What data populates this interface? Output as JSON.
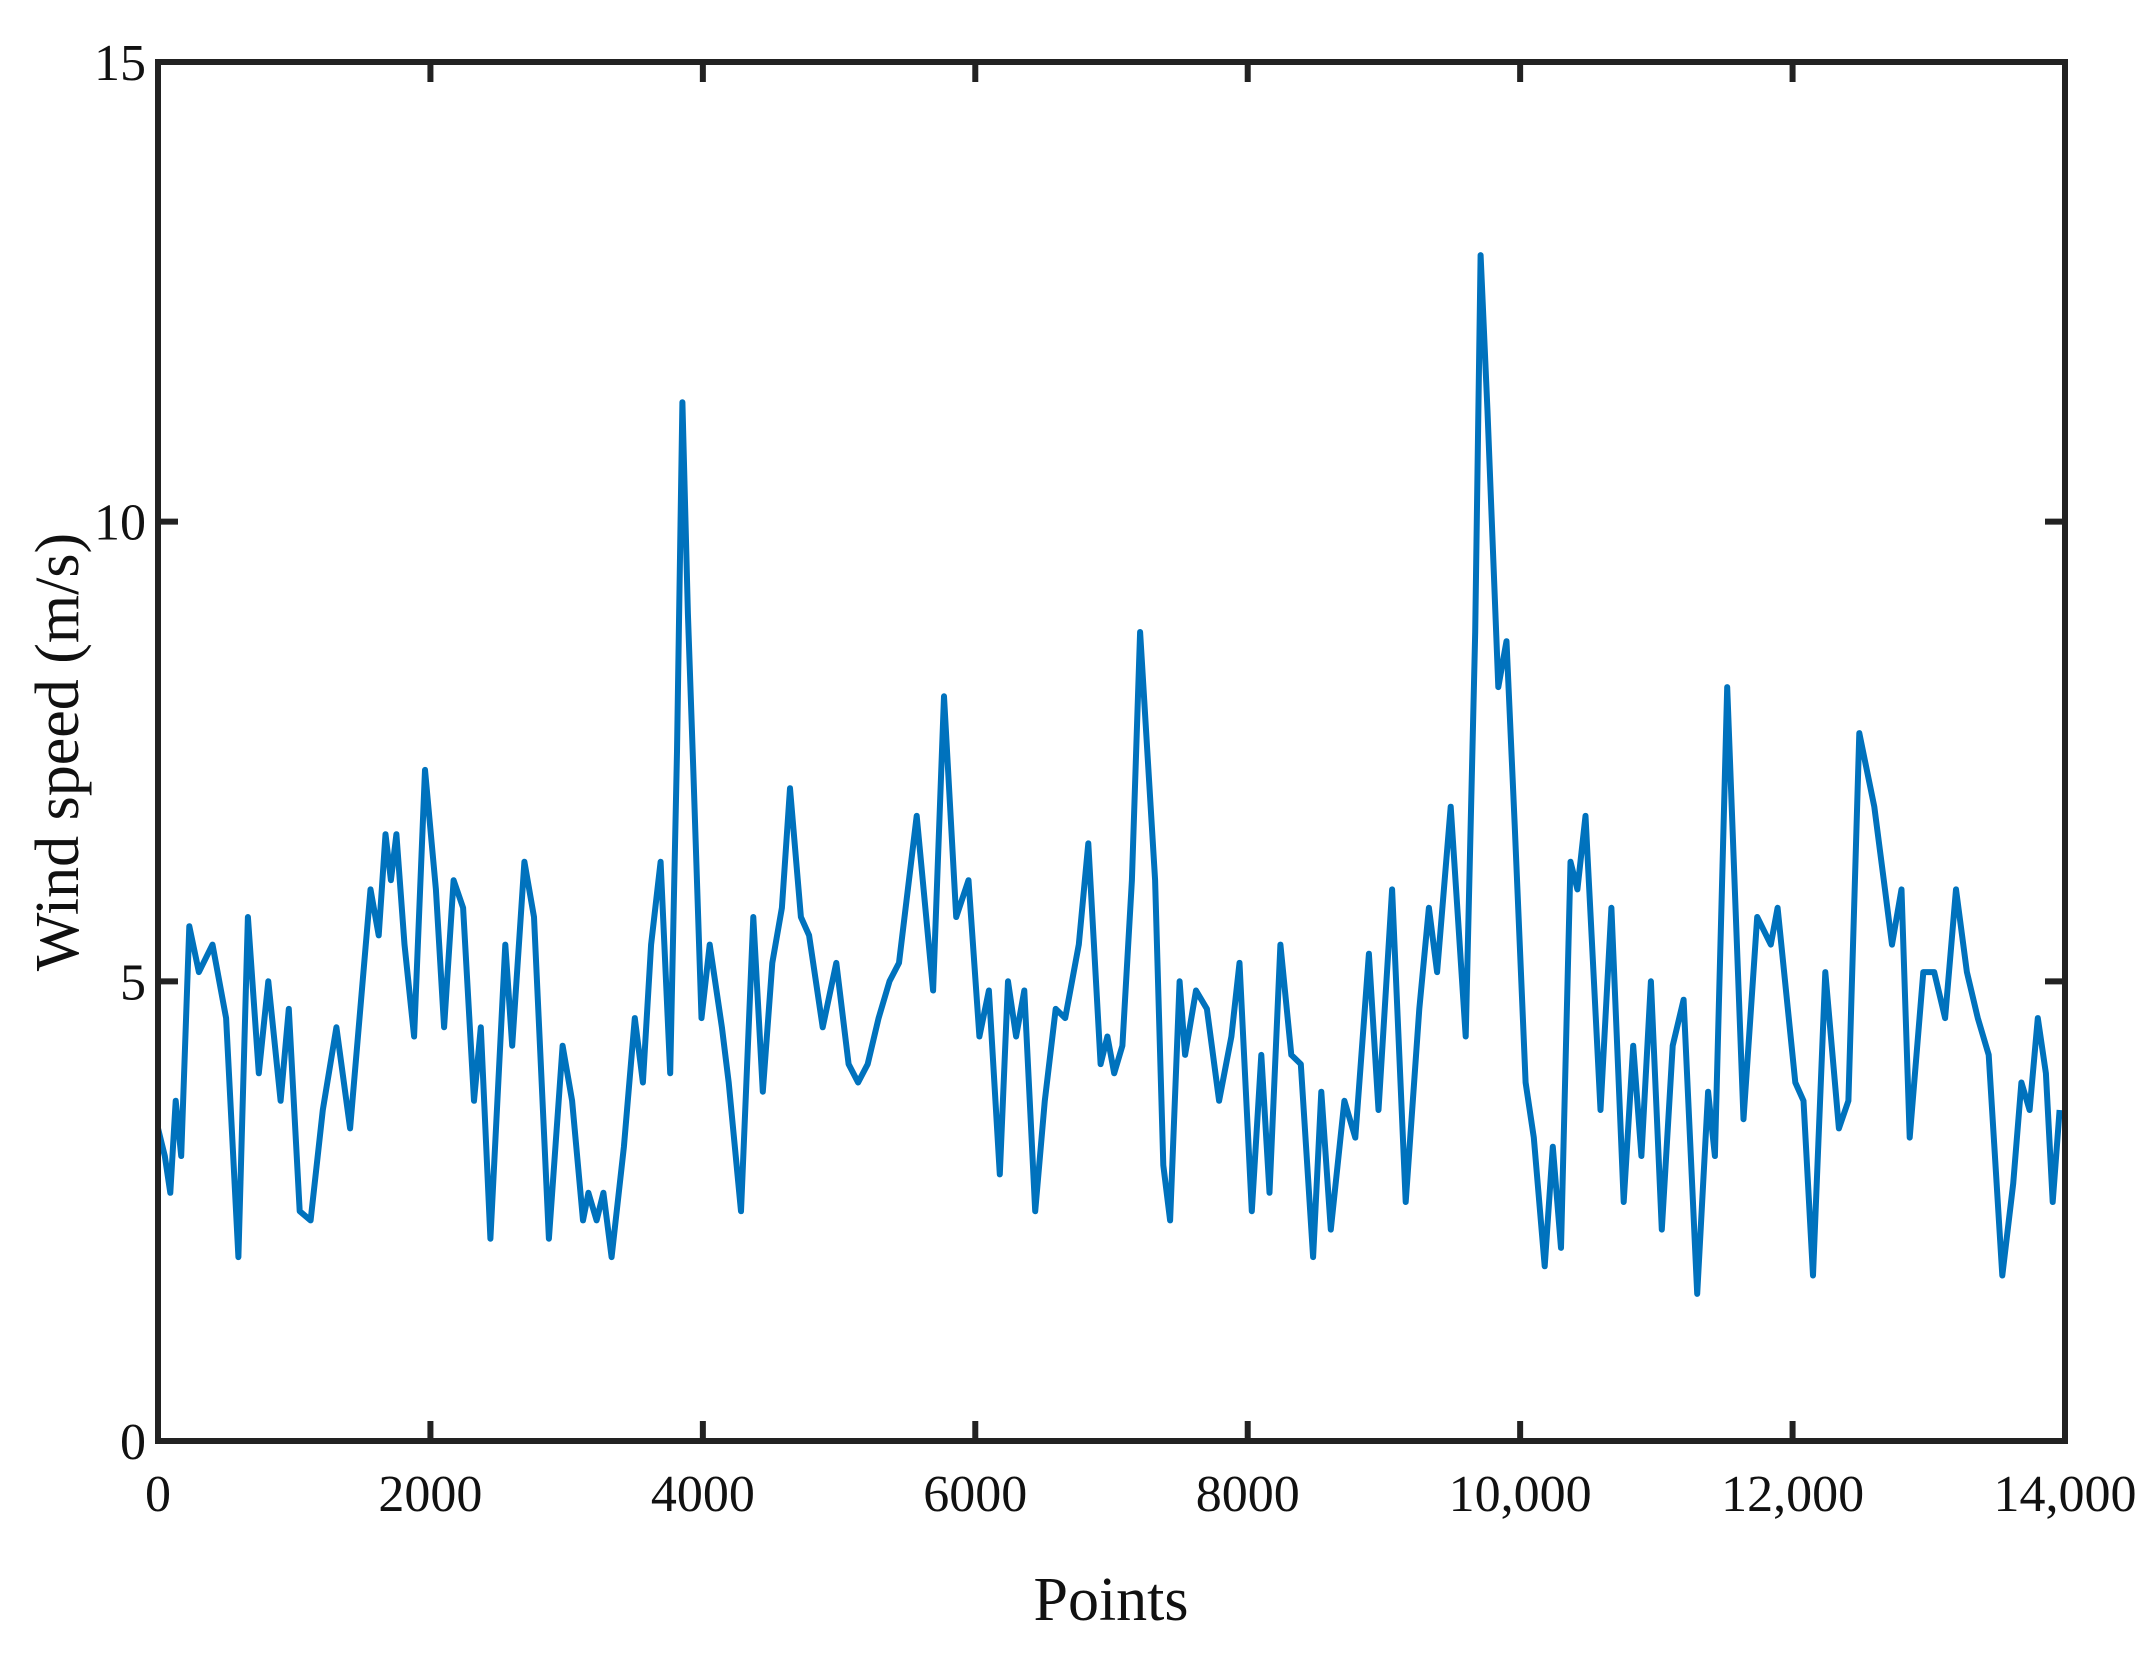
{
  "chart_data": {
    "type": "line",
    "xlabel": "Points",
    "ylabel": "Wind speed (m/s)",
    "x": [
      0,
      50,
      90,
      130,
      170,
      230,
      300,
      400,
      500,
      590,
      660,
      740,
      810,
      900,
      960,
      1040,
      1120,
      1210,
      1310,
      1410,
      1560,
      1620,
      1670,
      1710,
      1750,
      1810,
      1880,
      1960,
      2040,
      2100,
      2170,
      2240,
      2320,
      2370,
      2440,
      2550,
      2600,
      2690,
      2760,
      2870,
      2970,
      3040,
      3120,
      3160,
      3220,
      3270,
      3330,
      3420,
      3500,
      3560,
      3620,
      3690,
      3760,
      3810,
      3850,
      3890,
      3930,
      3990,
      4050,
      4140,
      4190,
      4280,
      4370,
      4440,
      4510,
      4580,
      4640,
      4720,
      4780,
      4880,
      4980,
      5070,
      5140,
      5210,
      5290,
      5370,
      5440,
      5570,
      5690,
      5770,
      5860,
      5950,
      6030,
      6100,
      6180,
      6240,
      6300,
      6360,
      6440,
      6510,
      6590,
      6660,
      6760,
      6830,
      6920,
      6970,
      7020,
      7080,
      7150,
      7210,
      7320,
      7380,
      7430,
      7500,
      7540,
      7620,
      7700,
      7790,
      7880,
      7940,
      8030,
      8100,
      8160,
      8240,
      8320,
      8390,
      8480,
      8540,
      8610,
      8710,
      8790,
      8890,
      8960,
      9060,
      9160,
      9260,
      9330,
      9390,
      9440,
      9490,
      9600,
      9670,
      9710,
      9760,
      9840,
      9900,
      9960,
      10040,
      10100,
      10180,
      10240,
      10300,
      10370,
      10420,
      10480,
      10590,
      10670,
      10760,
      10830,
      10890,
      10960,
      11040,
      11120,
      11200,
      11300,
      11380,
      11430,
      11520,
      11640,
      11740,
      11840,
      11890,
      12020,
      12080,
      12150,
      12240,
      12340,
      12410,
      12490,
      12600,
      12670,
      12730,
      12800,
      12860,
      12960,
      13040,
      13120,
      13200,
      13280,
      13360,
      13440,
      13540,
      13620,
      13680,
      13740,
      13800,
      13860,
      13910,
      13960
    ],
    "series": [
      {
        "color": "#0072bd",
        "values": [
          3.4,
          3.1,
          2.7,
          3.7,
          3.1,
          5.6,
          5.1,
          5.4,
          4.6,
          2.0,
          5.7,
          4.0,
          5.0,
          3.7,
          4.7,
          2.5,
          2.4,
          3.6,
          4.5,
          3.4,
          6.0,
          5.5,
          6.6,
          6.1,
          6.6,
          5.4,
          4.4,
          7.3,
          6.0,
          4.5,
          6.1,
          5.8,
          3.7,
          4.5,
          2.2,
          5.4,
          4.3,
          6.3,
          5.7,
          2.2,
          4.3,
          3.7,
          2.4,
          2.7,
          2.4,
          2.7,
          2.0,
          3.2,
          4.6,
          3.9,
          5.4,
          6.3,
          4.0,
          7.5,
          11.3,
          9.0,
          7.3,
          4.6,
          5.4,
          4.5,
          3.9,
          2.5,
          5.7,
          3.8,
          5.2,
          5.8,
          7.1,
          5.7,
          5.5,
          4.5,
          5.2,
          4.1,
          3.9,
          4.1,
          4.6,
          5.0,
          5.2,
          6.8,
          4.9,
          8.1,
          5.7,
          6.1,
          4.4,
          4.9,
          2.9,
          5.0,
          4.4,
          4.9,
          2.5,
          3.7,
          4.7,
          4.6,
          5.4,
          6.5,
          4.1,
          4.4,
          4.0,
          4.3,
          6.1,
          8.8,
          6.1,
          3.0,
          2.4,
          5.0,
          4.2,
          4.9,
          4.7,
          3.7,
          4.4,
          5.2,
          2.5,
          4.2,
          2.7,
          5.4,
          4.2,
          4.1,
          2.0,
          3.8,
          2.3,
          3.7,
          3.3,
          5.3,
          3.6,
          6.0,
          2.6,
          4.7,
          5.8,
          5.1,
          6.0,
          6.9,
          4.4,
          8.8,
          12.9,
          11.2,
          8.2,
          8.7,
          6.7,
          3.9,
          3.3,
          1.9,
          3.2,
          2.1,
          6.3,
          6.0,
          6.8,
          3.6,
          5.8,
          2.6,
          4.3,
          3.1,
          5.0,
          2.3,
          4.3,
          4.8,
          1.6,
          3.8,
          3.1,
          8.2,
          3.5,
          5.7,
          5.4,
          5.8,
          3.9,
          3.7,
          1.8,
          5.1,
          3.4,
          3.7,
          7.7,
          6.9,
          6.1,
          5.4,
          6.0,
          3.3,
          5.1,
          5.1,
          4.6,
          6.0,
          5.1,
          4.6,
          4.2,
          1.8,
          2.8,
          3.9,
          3.6,
          4.6,
          4.0,
          2.6,
          3.6
        ]
      }
    ],
    "xlim": [
      0,
      14000
    ],
    "xticks": [
      0,
      2000,
      4000,
      6000,
      8000,
      {
        "value": 10000,
        "label": "10,000"
      },
      {
        "value": 12000,
        "label": "12,000"
      },
      {
        "value": 14000,
        "label": "14,000"
      }
    ],
    "ylim": [
      0,
      15
    ],
    "yticks": [
      0,
      5,
      10,
      15
    ],
    "grid": false
  }
}
